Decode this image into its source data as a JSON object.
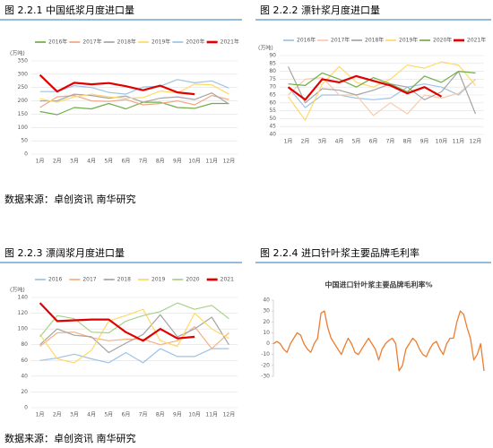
{
  "chart_data": [
    {
      "type": "line",
      "title": "图 2.2.1 中国纸浆月度进口量",
      "y_label": "(万吨)",
      "categories": [
        "1月",
        "2月",
        "3月",
        "4月",
        "5月",
        "6月",
        "7月",
        "8月",
        "9月",
        "10月",
        "11月",
        "12月"
      ],
      "ylim": [
        0,
        350
      ],
      "yticks": [
        0,
        50,
        100,
        150,
        200,
        250,
        300,
        350
      ],
      "grid": true,
      "series": [
        {
          "name": "2016年",
          "color": "#70ad47",
          "width": 1.2,
          "values": [
            160,
            148,
            175,
            170,
            190,
            170,
            195,
            195,
            175,
            172,
            190,
            190
          ]
        },
        {
          "name": "2017年",
          "color": "#f4a582",
          "width": 1.2,
          "values": [
            175,
            215,
            220,
            200,
            198,
            205,
            185,
            190,
            200,
            185,
            220,
            205
          ]
        },
        {
          "name": "2018年",
          "color": "#a5a5a5",
          "width": 1.2,
          "values": [
            200,
            200,
            225,
            220,
            210,
            218,
            195,
            210,
            215,
            205,
            230,
            188
          ]
        },
        {
          "name": "2019年",
          "color": "#ffd966",
          "width": 1.2,
          "values": [
            208,
            195,
            215,
            225,
            215,
            210,
            212,
            237,
            230,
            263,
            260,
            225
          ]
        },
        {
          "name": "2020年",
          "color": "#9dc3e6",
          "width": 1.2,
          "values": [
            235,
            235,
            257,
            250,
            232,
            225,
            252,
            255,
            280,
            268,
            275,
            248
          ]
        },
        {
          "name": "2021年",
          "color": "#e00000",
          "width": 2.2,
          "values": [
            297,
            235,
            268,
            262,
            267,
            255,
            240,
            257,
            232,
            225,
            null,
            null
          ]
        }
      ]
    },
    {
      "type": "line",
      "title": "图 2.2.2 漂针浆月度进口量",
      "y_label": "(万吨)",
      "categories": [
        "1月",
        "2月",
        "3月",
        "4月",
        "5月",
        "6月",
        "7月",
        "8月",
        "9月",
        "10月",
        "11月",
        "12月"
      ],
      "ylim": [
        40,
        90
      ],
      "yticks": [
        40,
        45,
        50,
        55,
        60,
        65,
        70,
        75,
        80,
        85,
        90
      ],
      "grid": true,
      "series": [
        {
          "name": "2016年",
          "color": "#9dc3e6",
          "width": 1.2,
          "values": [
            70,
            57,
            65,
            65,
            63,
            62,
            63,
            70,
            72,
            70,
            65,
            75
          ]
        },
        {
          "name": "2017年",
          "color": "#f8cbad",
          "width": 1.2,
          "values": [
            65,
            75,
            76,
            65,
            65,
            52,
            60,
            53,
            65,
            63,
            66,
            75
          ]
        },
        {
          "name": "2018年",
          "color": "#a5a5a5",
          "width": 1.2,
          "values": [
            83,
            60,
            69,
            68,
            65,
            68,
            72,
            70,
            62,
            67,
            80,
            53
          ]
        },
        {
          "name": "2019年",
          "color": "#ffd966",
          "width": 1.2,
          "values": [
            64,
            49,
            72,
            83,
            73,
            70,
            75,
            84,
            82,
            86,
            84,
            71
          ]
        },
        {
          "name": "2020年",
          "color": "#70ad47",
          "width": 1.2,
          "values": [
            72,
            71,
            79,
            75,
            70,
            76,
            72,
            67,
            77,
            73,
            80,
            79
          ]
        },
        {
          "name": "2021年",
          "color": "#e00000",
          "width": 2.2,
          "values": [
            70,
            62,
            75,
            73,
            77,
            74,
            71,
            66,
            70,
            64,
            null,
            null
          ]
        }
      ]
    },
    {
      "type": "line",
      "title": "图 2.2.3 漂阔浆月度进口量",
      "y_label": "(万吨)",
      "categories": [
        "1月",
        "2月",
        "3月",
        "4月",
        "5月",
        "6月",
        "7月",
        "8月",
        "9月",
        "10月",
        "11月",
        "12月"
      ],
      "ylim": [
        0,
        140
      ],
      "yticks": [
        0,
        20,
        40,
        60,
        80,
        100,
        120,
        140
      ],
      "grid": true,
      "series": [
        {
          "name": "2016",
          "color": "#9dc3e6",
          "width": 1.2,
          "values": [
            60,
            63,
            68,
            62,
            57,
            70,
            57,
            75,
            65,
            65,
            75,
            75
          ]
        },
        {
          "name": "2017",
          "color": "#f4b183",
          "width": 1.2,
          "values": [
            78,
            95,
            96,
            89,
            85,
            87,
            87,
            80,
            85,
            103,
            75,
            95
          ]
        },
        {
          "name": "2018",
          "color": "#a5a5a5",
          "width": 1.2,
          "values": [
            80,
            100,
            92,
            90,
            70,
            82,
            93,
            118,
            90,
            100,
            115,
            80
          ]
        },
        {
          "name": "2019",
          "color": "#ffd966",
          "width": 1.2,
          "values": [
            93,
            62,
            57,
            73,
            110,
            117,
            125,
            85,
            78,
            120,
            100,
            88
          ]
        },
        {
          "name": "2020",
          "color": "#a9d18e",
          "width": 1.2,
          "values": [
            90,
            117,
            113,
            96,
            95,
            110,
            117,
            122,
            133,
            125,
            130,
            113
          ]
        },
        {
          "name": "2021",
          "color": "#e00000",
          "width": 2.2,
          "values": [
            133,
            110,
            111,
            112,
            112,
            96,
            85,
            100,
            88,
            90,
            null,
            null
          ]
        }
      ]
    },
    {
      "type": "line",
      "title": "图 2.2.4 进口针叶浆主要品牌毛利率",
      "subtitle": "中国进口针叶浆主要品牌毛利率%",
      "ylim": [
        -30,
        40
      ],
      "yticks": [
        -30,
        -20,
        -10,
        0,
        10,
        20,
        30,
        40
      ],
      "grid": false,
      "series": [
        {
          "color": "#ed7d31",
          "width": 1.3,
          "values": [
            0,
            2,
            0,
            -5,
            -8,
            0,
            5,
            10,
            8,
            0,
            -5,
            -8,
            0,
            5,
            28,
            30,
            15,
            5,
            0,
            -5,
            -10,
            -2,
            5,
            0,
            -8,
            -10,
            -5,
            0,
            5,
            0,
            -5,
            -15,
            -5,
            0,
            3,
            5,
            0,
            -25,
            -20,
            -5,
            0,
            5,
            2,
            -5,
            -10,
            -12,
            -5,
            0,
            2,
            -5,
            -10,
            0,
            5,
            5,
            20,
            30,
            27,
            15,
            5,
            -15,
            -10,
            0,
            -25
          ]
        }
      ]
    }
  ],
  "sources": [
    "数据来源：卓创资讯 南华研究",
    "数据来源：卓创资讯 南华研究"
  ]
}
